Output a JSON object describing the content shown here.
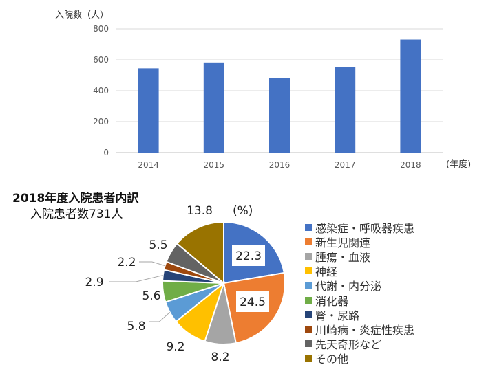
{
  "chart_data": [
    {
      "type": "bar",
      "ylabel": "入院数（人）",
      "xlabel": "(年度)",
      "categories": [
        "2014",
        "2015",
        "2016",
        "2017",
        "2018"
      ],
      "values": [
        545,
        583,
        482,
        553,
        731
      ],
      "ylim": [
        0,
        800
      ],
      "yticks": [
        0,
        200,
        400,
        600,
        800
      ],
      "grid": true,
      "bar_color": "#4472C4"
    },
    {
      "type": "pie",
      "title": "2018年度入院患者内訳",
      "subtitle": "入院患者数731人",
      "unit_label": "(%)",
      "legend_position": "right",
      "slices": [
        {
          "label": "感染症・呼吸器疾患",
          "value": 22.3,
          "color": "#4472C4"
        },
        {
          "label": "新生児関連",
          "value": 24.5,
          "color": "#ED7D31"
        },
        {
          "label": "腫瘍・血液",
          "value": 8.2,
          "color": "#A5A5A5"
        },
        {
          "label": "神経",
          "value": 9.2,
          "color": "#FFC000"
        },
        {
          "label": "代謝・内分泌",
          "value": 5.8,
          "color": "#5B9BD5"
        },
        {
          "label": "消化器",
          "value": 5.6,
          "color": "#70AD47"
        },
        {
          "label": "腎・尿路",
          "value": 2.9,
          "color": "#264478"
        },
        {
          "label": "川崎病・炎症性疾患",
          "value": 2.2,
          "color": "#9E480E"
        },
        {
          "label": "先天奇形など",
          "value": 5.5,
          "color": "#636363"
        },
        {
          "label": "その他",
          "value": 13.8,
          "color": "#997300"
        }
      ]
    }
  ]
}
